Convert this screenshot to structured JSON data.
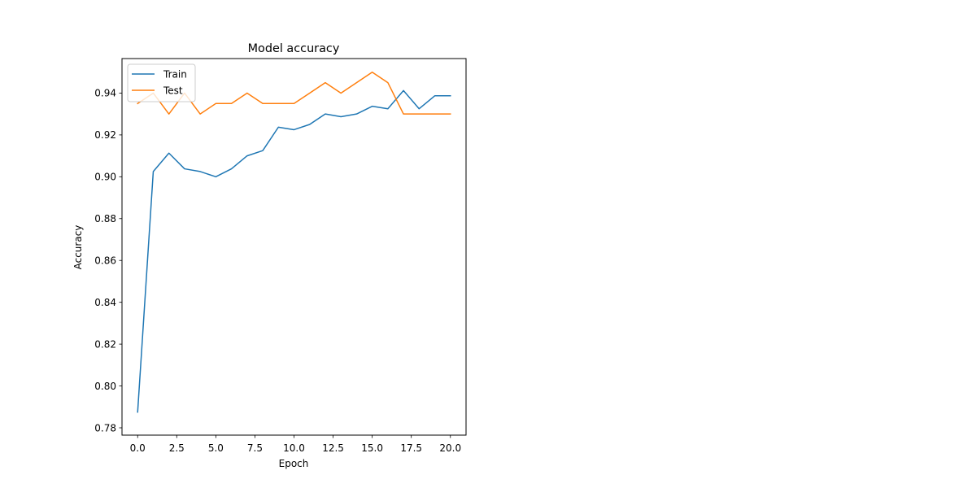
{
  "chart_data": {
    "type": "line",
    "title": "Model accuracy",
    "xlabel": "Epoch",
    "ylabel": "Accuracy",
    "xlim": [
      -1.0,
      21.0
    ],
    "ylim": [
      0.7765,
      0.9565
    ],
    "xticks": [
      0.0,
      2.5,
      5.0,
      7.5,
      10.0,
      12.5,
      15.0,
      17.5,
      20.0
    ],
    "xtick_labels": [
      "0.0",
      "2.5",
      "5.0",
      "7.5",
      "10.0",
      "12.5",
      "15.0",
      "17.5",
      "20.0"
    ],
    "yticks": [
      0.78,
      0.8,
      0.82,
      0.84,
      0.86,
      0.88,
      0.9,
      0.92,
      0.94
    ],
    "ytick_labels": [
      "0.78",
      "0.80",
      "0.82",
      "0.84",
      "0.86",
      "0.88",
      "0.90",
      "0.92",
      "0.94"
    ],
    "grid": false,
    "legend_position": "upper-left",
    "x": [
      0,
      1,
      2,
      3,
      4,
      5,
      6,
      7,
      8,
      9,
      10,
      11,
      12,
      13,
      14,
      15,
      16,
      17,
      18,
      19,
      20
    ],
    "series": [
      {
        "name": "Train",
        "color": "#1f77b4",
        "values": [
          0.7875,
          0.9025,
          0.9113,
          0.9038,
          0.9025,
          0.9,
          0.9038,
          0.91,
          0.9125,
          0.9237,
          0.9225,
          0.925,
          0.93,
          0.9287,
          0.93,
          0.9337,
          0.9325,
          0.9412,
          0.9325,
          0.9387,
          0.9387
        ]
      },
      {
        "name": "Test",
        "color": "#ff7f0e",
        "values": [
          0.935,
          0.94,
          0.93,
          0.94,
          0.93,
          0.935,
          0.935,
          0.94,
          0.935,
          0.935,
          0.935,
          0.94,
          0.945,
          0.94,
          0.945,
          0.95,
          0.945,
          0.93,
          0.93,
          0.93,
          0.93
        ]
      }
    ]
  }
}
